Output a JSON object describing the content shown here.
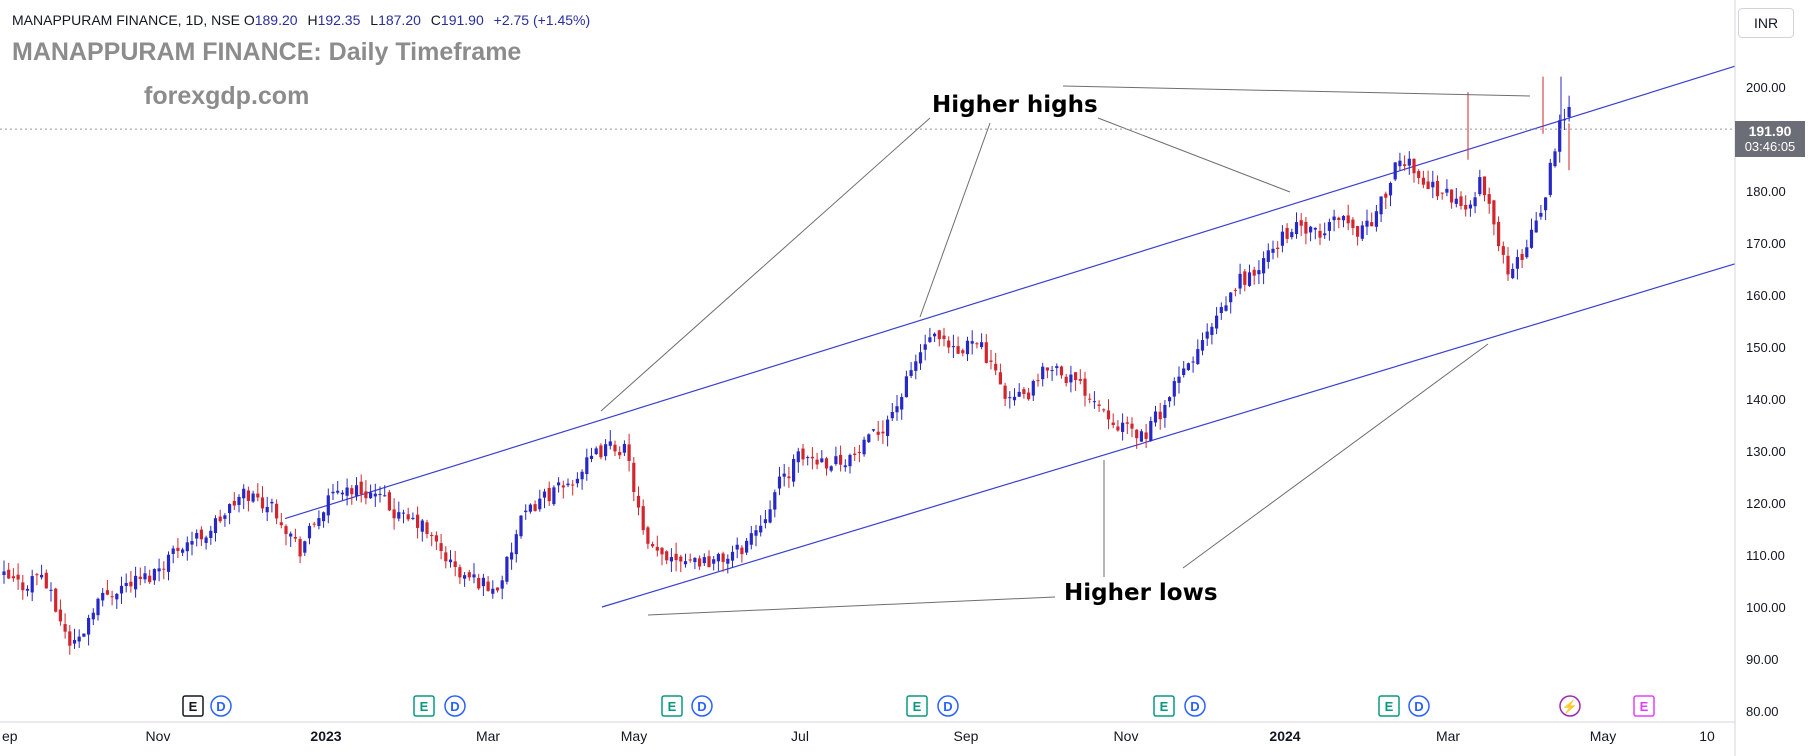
{
  "header": {
    "symbol": "MANAPPURAM FINANCE, 1D, NSE",
    "open_label": "O",
    "open": "189.20",
    "high_label": "H",
    "high": "192.35",
    "low_label": "L",
    "low": "187.20",
    "close_label": "C",
    "close": "191.90",
    "change": "+2.75 (+1.45%)"
  },
  "title": "MANAPPURAM FINANCE: Daily Timeframe",
  "website": "forexgdp.com",
  "currency": "INR",
  "price_label": {
    "price": "191.90",
    "countdown": "03:46:05"
  },
  "annotations": {
    "higher_highs": "Higher highs",
    "higher_lows": "Higher lows"
  },
  "colors": {
    "up": "#2729c6",
    "down": "#d1262e",
    "channel": "#3a3fd0",
    "annotation_line": "#6e6e6e",
    "axis_text": "#131722",
    "earnings_green": "#089981",
    "dividend_blue": "#2962ff",
    "event_purple": "#9c27b0",
    "event_magenta": "#e040fb"
  },
  "chart_data": {
    "type": "candlestick",
    "title": "MANAPPURAM FINANCE: Daily Timeframe",
    "y_ticks": [
      "200.00",
      "190.00",
      "180.00",
      "170.00",
      "160.00",
      "150.00",
      "140.00",
      "130.00",
      "120.00",
      "110.00",
      "100.00",
      "90.00",
      "80.00"
    ],
    "ylim": [
      80,
      210
    ],
    "x_ticks": [
      {
        "label": "ep",
        "bold": false
      },
      {
        "label": "Nov",
        "bold": false
      },
      {
        "label": "2023",
        "bold": true
      },
      {
        "label": "Mar",
        "bold": false
      },
      {
        "label": "May",
        "bold": false
      },
      {
        "label": "Jul",
        "bold": false
      },
      {
        "label": "Sep",
        "bold": false
      },
      {
        "label": "Nov",
        "bold": false
      },
      {
        "label": "2024",
        "bold": true
      },
      {
        "label": "Mar",
        "bold": false
      },
      {
        "label": "May",
        "bold": false
      },
      {
        "label": "10",
        "bold": false
      }
    ],
    "last_price": 191.9,
    "price_path": [
      [
        0,
        106
      ],
      [
        25,
        104
      ],
      [
        40,
        107
      ],
      [
        55,
        100
      ],
      [
        70,
        93
      ],
      [
        80,
        94
      ],
      [
        95,
        101
      ],
      [
        120,
        104
      ],
      [
        150,
        106
      ],
      [
        180,
        112
      ],
      [
        205,
        114
      ],
      [
        225,
        118
      ],
      [
        245,
        122
      ],
      [
        275,
        119
      ],
      [
        290,
        114
      ],
      [
        300,
        111
      ],
      [
        320,
        118
      ],
      [
        340,
        123
      ],
      [
        370,
        122
      ],
      [
        385,
        120
      ],
      [
        400,
        117
      ],
      [
        420,
        116
      ],
      [
        440,
        111
      ],
      [
        460,
        106
      ],
      [
        480,
        105
      ],
      [
        495,
        103
      ],
      [
        505,
        107
      ],
      [
        520,
        116
      ],
      [
        540,
        121
      ],
      [
        565,
        123
      ],
      [
        585,
        127
      ],
      [
        600,
        130
      ],
      [
        615,
        131
      ],
      [
        625,
        130
      ],
      [
        632,
        125
      ],
      [
        645,
        112
      ],
      [
        655,
        110
      ],
      [
        675,
        110
      ],
      [
        700,
        109
      ],
      [
        720,
        109
      ],
      [
        740,
        111
      ],
      [
        760,
        116
      ],
      [
        780,
        124
      ],
      [
        800,
        129
      ],
      [
        830,
        128
      ],
      [
        855,
        129
      ],
      [
        880,
        134
      ],
      [
        900,
        140
      ],
      [
        915,
        147
      ],
      [
        930,
        152
      ],
      [
        945,
        150
      ],
      [
        960,
        148
      ],
      [
        975,
        153
      ],
      [
        990,
        146
      ],
      [
        1010,
        140
      ],
      [
        1030,
        141
      ],
      [
        1050,
        147
      ],
      [
        1070,
        144
      ],
      [
        1090,
        141
      ],
      [
        1110,
        137
      ],
      [
        1125,
        134
      ],
      [
        1145,
        133
      ],
      [
        1165,
        139
      ],
      [
        1180,
        144
      ],
      [
        1200,
        150
      ],
      [
        1220,
        156
      ],
      [
        1240,
        163
      ],
      [
        1255,
        164
      ],
      [
        1270,
        168
      ],
      [
        1285,
        172
      ],
      [
        1300,
        173
      ],
      [
        1320,
        171
      ],
      [
        1340,
        176
      ],
      [
        1355,
        172
      ],
      [
        1375,
        175
      ],
      [
        1395,
        184
      ],
      [
        1410,
        186
      ],
      [
        1425,
        181
      ],
      [
        1445,
        180
      ],
      [
        1465,
        176
      ],
      [
        1480,
        182
      ],
      [
        1495,
        173
      ],
      [
        1510,
        163
      ],
      [
        1525,
        169
      ],
      [
        1545,
        179
      ],
      [
        1560,
        194
      ],
      [
        1572,
        196
      ],
      [
        1585,
        193
      ],
      [
        1600,
        187
      ],
      [
        1615,
        190
      ],
      [
        1625,
        191.9
      ]
    ],
    "channel": {
      "upper": {
        "from": [
          "Nov 2022",
          117
        ],
        "to": [
          "May 2024",
          204
        ]
      },
      "lower": {
        "from": [
          "Apr 2023",
          100
        ],
        "to": [
          "May 2024",
          166
        ]
      }
    },
    "annotations": [
      "Higher highs",
      "Higher lows"
    ],
    "event_markers": [
      {
        "x": "Dec 2022",
        "label": "E",
        "kind": "earnings-past"
      },
      {
        "x": "Dec 2022",
        "label": "D",
        "kind": "dividend"
      },
      {
        "x": "Feb 2023",
        "label": "E",
        "kind": "earnings"
      },
      {
        "x": "Feb 2023",
        "label": "D",
        "kind": "dividend"
      },
      {
        "x": "May 2023",
        "label": "E",
        "kind": "earnings"
      },
      {
        "x": "May 2023",
        "label": "D",
        "kind": "dividend"
      },
      {
        "x": "Aug 2023",
        "label": "E",
        "kind": "earnings"
      },
      {
        "x": "Aug 2023",
        "label": "D",
        "kind": "dividend"
      },
      {
        "x": "Nov 2023",
        "label": "E",
        "kind": "earnings"
      },
      {
        "x": "Nov 2023",
        "label": "D",
        "kind": "dividend"
      },
      {
        "x": "Feb 2024",
        "label": "E",
        "kind": "earnings"
      },
      {
        "x": "Feb 2024",
        "label": "D",
        "kind": "dividend"
      },
      {
        "x": "Apr 2024",
        "label": "⚡",
        "kind": "event"
      },
      {
        "x": "May 2024",
        "label": "E",
        "kind": "earnings-future"
      }
    ]
  }
}
